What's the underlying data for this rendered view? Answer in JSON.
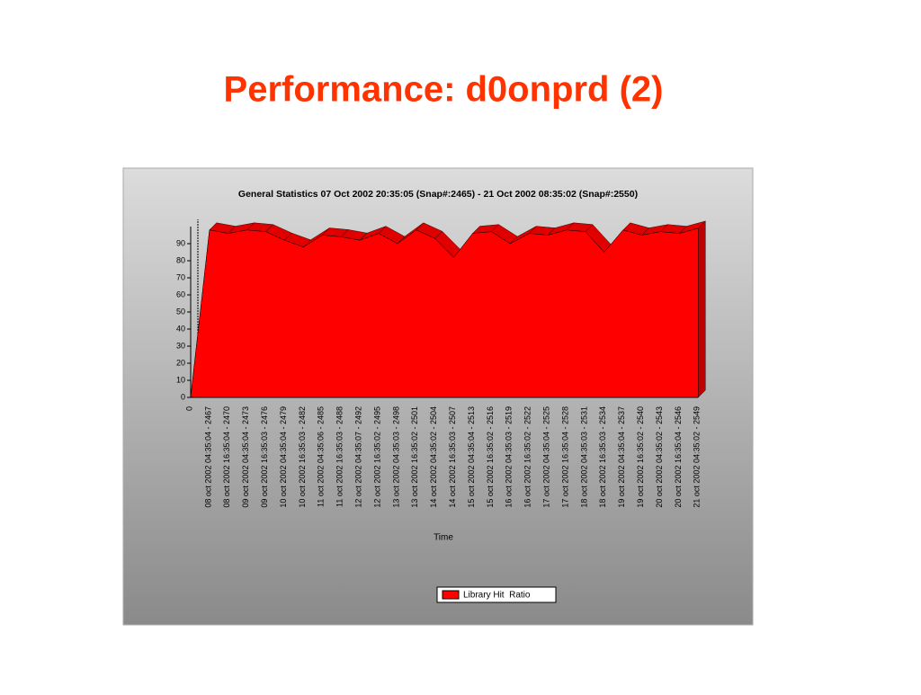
{
  "heading": "Performance: d0onprd (2)",
  "chart_data": {
    "type": "area",
    "title": "General Statistics 07 Oct 2002 20:35:05 (Snap#:2465) - 21 Oct 2002 08:35:02 (Snap#:2550)",
    "x_label": "Time",
    "categories": [
      "0",
      "08 oct 2002 04:35:04 - 2467",
      "08 oct 2002 16:35:04 - 2470",
      "09 oct 2002 04:35:04 - 2473",
      "09 oct 2002 16:35:03 - 2476",
      "10 oct 2002 04:35:04 - 2479",
      "10 oct 2002 16:35:03 - 2482",
      "11 oct 2002 04:35:06 - 2485",
      "11 oct 2002 16:35:03 - 2488",
      "12 oct 2002 04:35:07 - 2492",
      "12 oct 2002 16:35:02 - 2495",
      "13 oct 2002 04:35:03 - 2498",
      "13 oct 2002 16:35:02 - 2501",
      "14 oct 2002 04:35:02 - 2504",
      "14 oct 2002 16:35:03 - 2507",
      "15 oct 2002 04:35:04 - 2513",
      "15 oct 2002 16:35:02 - 2516",
      "16 oct 2002 04:35:03 - 2519",
      "16 oct 2002 16:35:02 - 2522",
      "17 oct 2002 04:35:04 - 2525",
      "17 oct 2002 16:35:04 - 2528",
      "18 oct 2002 04:35:03 - 2531",
      "18 oct 2002 16:35:03 - 2534",
      "19 oct 2002 04:35:04 - 2537",
      "19 oct 2002 16:35:02 - 2540",
      "20 oct 2002 04:35:02 - 2543",
      "20 oct 2002 16:35:04 - 2546",
      "21 oct 2002 04:35:02 - 2549"
    ],
    "series": [
      {
        "name": "Library Hit  Ratio",
        "color": "#ff0000",
        "values": [
          0,
          98,
          96,
          98,
          97,
          92,
          88,
          95,
          94,
          92,
          96,
          90,
          98,
          93,
          82,
          96,
          97,
          90,
          96,
          95,
          98,
          97,
          85,
          98,
          95,
          97,
          96,
          99
        ]
      }
    ],
    "ylim": [
      0,
      100
    ],
    "yticks": [
      0,
      10,
      20,
      30,
      40,
      50,
      60,
      70,
      80,
      90
    ],
    "grid": false,
    "legend": "bottom"
  }
}
